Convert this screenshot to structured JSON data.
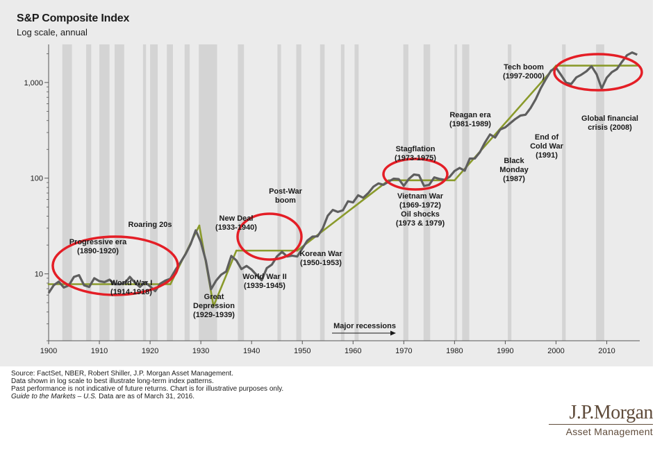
{
  "chart_data": {
    "type": "line",
    "title": "S&P Composite Index",
    "subtitle": "Log scale, annual",
    "y_scale": "log",
    "ylim": [
      2,
      2500
    ],
    "xlim": [
      1900,
      2016.5
    ],
    "x_ticks": [
      1900,
      1910,
      1920,
      1930,
      1940,
      1950,
      1960,
      1970,
      1980,
      1990,
      2000,
      2010
    ],
    "x_tick_labels": [
      "1900",
      "1910",
      "1920",
      "1930",
      "1940",
      "1950",
      "1960",
      "1970",
      "1980",
      "1990",
      "2000",
      "2010"
    ],
    "y_ticks": [
      10,
      100,
      1000
    ],
    "y_tick_labels": [
      "10",
      "100",
      "1,000"
    ],
    "grid": false,
    "series": [
      {
        "color": "#5e5e5e",
        "x": [
          1900,
          1901,
          1902,
          1903,
          1904,
          1905,
          1906,
          1907,
          1908,
          1909,
          1910,
          1911,
          1912,
          1913,
          1914,
          1915,
          1916,
          1917,
          1918,
          1919,
          1920,
          1921,
          1922,
          1923,
          1924,
          1925,
          1926,
          1927,
          1928,
          1929,
          1930,
          1931,
          1932,
          1933,
          1934,
          1935,
          1936,
          1937,
          1938,
          1939,
          1940,
          1941,
          1942,
          1943,
          1944,
          1945,
          1946,
          1947,
          1948,
          1949,
          1950,
          1951,
          1952,
          1953,
          1954,
          1955,
          1956,
          1957,
          1958,
          1959,
          1960,
          1961,
          1962,
          1963,
          1964,
          1965,
          1966,
          1967,
          1968,
          1969,
          1970,
          1971,
          1972,
          1973,
          1974,
          1975,
          1976,
          1977,
          1978,
          1979,
          1980,
          1981,
          1982,
          1983,
          1984,
          1985,
          1986,
          1987,
          1988,
          1989,
          1990,
          1991,
          1992,
          1993,
          1994,
          1995,
          1996,
          1997,
          1998,
          1999,
          2000,
          2001,
          2002,
          2003,
          2004,
          2005,
          2006,
          2007,
          2008,
          2009,
          2010,
          2011,
          2012,
          2013,
          2014,
          2015,
          2016
        ],
        "values": [
          6.3,
          7.6,
          8.3,
          7.2,
          7.6,
          9.3,
          9.7,
          7.6,
          7.3,
          9.0,
          8.4,
          8.2,
          8.7,
          7.8,
          7.8,
          8.0,
          9.3,
          8.1,
          7.3,
          8.2,
          7.4,
          6.6,
          7.9,
          8.5,
          8.9,
          11.0,
          13.2,
          16.1,
          20.5,
          28.5,
          21.5,
          13.7,
          6.9,
          8.5,
          9.8,
          10.6,
          15.4,
          13.8,
          11.2,
          12.1,
          11.1,
          9.7,
          8.6,
          11.5,
          12.5,
          15.2,
          17.0,
          15.2,
          15.5,
          15.2,
          18.4,
          22.3,
          24.5,
          24.7,
          29.7,
          40.5,
          46.6,
          44.4,
          46.2,
          57.4,
          55.8,
          66.3,
          62.4,
          69.9,
          81.4,
          88.2,
          85.3,
          91.9,
          98.7,
          97.8,
          83.2,
          98.3,
          109.2,
          107.4,
          82.9,
          85.2,
          102.0,
          98.2,
          96.1,
          103.0,
          118.8,
          128.0,
          119.7,
          160.4,
          160.5,
          186.8,
          236.3,
          286.8,
          265.9,
          322.8,
          339.9,
          376.2,
          415.7,
          451.4,
          460.4,
          541.7,
          670.5,
          873.4,
          1085.5,
          1327.3,
          1427.2,
          1194.2,
          993.9,
          965.2,
          1130.7,
          1207.2,
          1310.5,
          1477.2,
          1220.0,
          865.6,
          1123.6,
          1282.6,
          1379.6,
          1643.8,
          1931.0,
          2061.1,
          1951.0
        ]
      }
    ],
    "trend_lines": [
      {
        "x": [
          1900,
          1924
        ],
        "y": [
          7.8,
          7.8
        ]
      },
      {
        "x": [
          1924,
          1929.7
        ],
        "y": [
          7.8,
          32
        ]
      },
      {
        "x": [
          1929.7,
          1932.5
        ],
        "y": [
          32,
          4.6
        ]
      },
      {
        "x": [
          1932.5,
          1937
        ],
        "y": [
          4.6,
          17.5
        ]
      },
      {
        "x": [
          1937,
          1949
        ],
        "y": [
          17.5,
          17.5
        ]
      },
      {
        "x": [
          1949,
          1967
        ],
        "y": [
          17.5,
          95
        ]
      },
      {
        "x": [
          1967,
          1980
        ],
        "y": [
          95,
          95
        ]
      },
      {
        "x": [
          1980,
          2000
        ],
        "y": [
          95,
          1500
        ]
      },
      {
        "x": [
          2000,
          2016
        ],
        "y": [
          1500,
          1500
        ]
      }
    ],
    "trend_color": "#8a9a2b",
    "recessions": [
      [
        1902.7,
        1904.6
      ],
      [
        1907.4,
        1908.4
      ],
      [
        1910.0,
        1912.0
      ],
      [
        1913.0,
        1914.9
      ],
      [
        1918.6,
        1919.2
      ],
      [
        1920.0,
        1921.5
      ],
      [
        1923.3,
        1924.5
      ],
      [
        1926.8,
        1927.8
      ],
      [
        1929.6,
        1933.2
      ],
      [
        1937.3,
        1938.5
      ],
      [
        1945.1,
        1945.8
      ],
      [
        1948.8,
        1949.8
      ],
      [
        1953.5,
        1954.4
      ],
      [
        1957.6,
        1958.3
      ],
      [
        1960.3,
        1961.1
      ],
      [
        1969.9,
        1970.9
      ],
      [
        1973.9,
        1975.2
      ],
      [
        1980.0,
        1980.5
      ],
      [
        1981.5,
        1982.9
      ],
      [
        1990.5,
        1991.2
      ],
      [
        2001.2,
        2001.9
      ],
      [
        2007.9,
        2009.5
      ]
    ],
    "recession_color": "#d4d4d4",
    "circle_color": "#e41e26",
    "annotations": [
      {
        "lines": [
          "Progressive era",
          "(1890-1920)"
        ]
      },
      {
        "lines": [
          "World War I",
          "(1914-1918)"
        ]
      },
      {
        "lines": [
          "Roaring 20s"
        ]
      },
      {
        "lines": [
          "Great",
          "Depression",
          "(1929-1939)"
        ]
      },
      {
        "lines": [
          "New Deal",
          "(1933-1940)"
        ]
      },
      {
        "lines": [
          "World War II",
          "(1939-1945)"
        ]
      },
      {
        "lines": [
          "Post-War",
          "boom"
        ]
      },
      {
        "lines": [
          "Korean War",
          "(1950-1953)"
        ]
      },
      {
        "lines": [
          "Stagflation",
          "(1973-1975)"
        ]
      },
      {
        "lines": [
          "Vietnam War",
          "(1969-1972)",
          "Oil shocks",
          "(1973 & 1979)"
        ]
      },
      {
        "lines": [
          "Reagan era",
          "(1981-1989)"
        ]
      },
      {
        "lines": [
          "Black",
          "Monday",
          "(1987)"
        ]
      },
      {
        "lines": [
          "End of",
          "Cold War",
          "(1991)"
        ]
      },
      {
        "lines": [
          "Tech boom",
          "(1997-2000)"
        ]
      },
      {
        "lines": [
          "Global financial",
          "crisis (2008)"
        ]
      }
    ],
    "recession_legend": "Major recessions"
  },
  "footer": {
    "line1": "Source: FactSet, NBER, Robert Shiller, J.P. Morgan Asset Management.",
    "line2": "Data shown in log scale to best illustrate long-term index patterns.",
    "line3": "Past performance is not indicative of future returns. Chart is for illustrative purposes only.",
    "line4_italic": "Guide to the Markets – U.S.",
    "line4_rest": " Data are as of March 31, 2016."
  },
  "logo": {
    "name": "J.P.Morgan",
    "sub": "Asset Management"
  }
}
